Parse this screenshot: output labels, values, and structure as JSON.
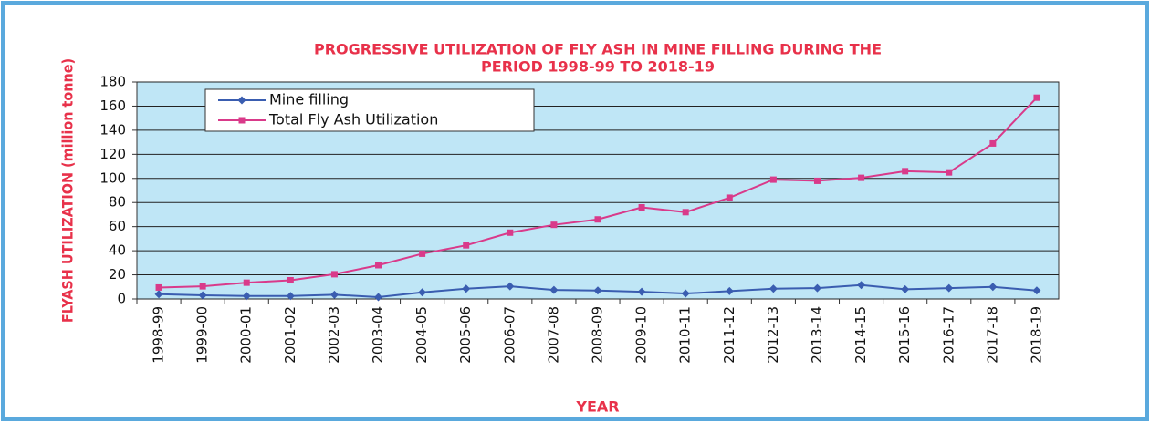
{
  "chart_data": {
    "type": "line",
    "title": [
      "PROGRESSIVE UTILIZATION OF FLY ASH IN MINE FILLING DURING THE",
      "PERIOD 1998-99 TO 2018-19"
    ],
    "x_label": "YEAR",
    "y_label": "FLYASH UTILIZATION  (million tonne)",
    "categories": [
      "1998-99",
      "1999-00",
      "2000-01",
      "2001-02",
      "2002-03",
      "2003-04",
      "2004-05",
      "2005-06",
      "2006-07",
      "2007-08",
      "2008-09",
      "2009-10",
      "2010-11",
      "2011-12",
      "2012-13",
      "2013-14",
      "2014-15",
      "2015-16",
      "2016-17",
      "2017-18",
      "2018-19"
    ],
    "series": [
      {
        "name": "Mine filling",
        "color": "#3a5db0",
        "marker": "diamond",
        "values": [
          4.0,
          3.0,
          2.5,
          2.5,
          3.5,
          1.5,
          5.5,
          8.5,
          10.5,
          7.5,
          7.0,
          6.0,
          4.5,
          6.5,
          8.5,
          9.0,
          11.5,
          8.0,
          9.0,
          10.0,
          7.0
        ]
      },
      {
        "name": "Total Fly Ash Utilization",
        "color": "#d93a8a",
        "marker": "square",
        "values": [
          9.5,
          10.5,
          13.5,
          15.5,
          20.5,
          28,
          37.5,
          44.5,
          55,
          61.5,
          66,
          76,
          72,
          84,
          99,
          98,
          100.5,
          106,
          105,
          129,
          167
        ]
      }
    ],
    "ylim": [
      0,
      180
    ],
    "yticks": [
      0,
      20,
      40,
      60,
      80,
      100,
      120,
      140,
      160,
      180
    ],
    "grid": true,
    "legend": "upper left"
  }
}
